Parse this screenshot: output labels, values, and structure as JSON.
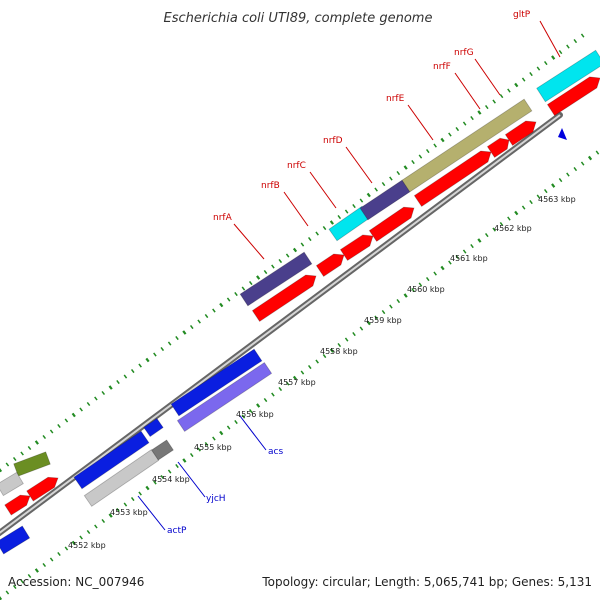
{
  "title": "Escherichia coli UTI89, complete genome",
  "footer": {
    "accession": "Accession: NC_007946",
    "summary": "Topology: circular; Length: 5,065,741 bp; Genes: 5,131"
  },
  "colors": {
    "red_gene": "#ff0000",
    "red_label": "#cc0000",
    "blue_label": "#0000cc",
    "navy": "#4a3f8c",
    "cyan": "#00e5ee",
    "khaki": "#b5b06e",
    "blue": "#0a1ee0",
    "slate": "#7b68ee",
    "grey": "#c8c8c8",
    "olive": "#6b8e23",
    "tick": "#228b22",
    "backbone": "#999999"
  },
  "kbp_labels": [
    "4552 kbp",
    "4553 kbp",
    "4554 kbp",
    "4555 kbp",
    "4556 kbp",
    "4557 kbp",
    "4558 kbp",
    "4559 kbp",
    "4560 kbp",
    "4561 kbp",
    "4562 kbp",
    "4563 kbp"
  ],
  "gene_labels_red": [
    "nrfA",
    "nrfB",
    "nrfC",
    "nrfD",
    "nrfE",
    "nrfF",
    "nrfG",
    "gltP"
  ],
  "gene_labels_blue": [
    "acs",
    "yjcH",
    "actP"
  ]
}
